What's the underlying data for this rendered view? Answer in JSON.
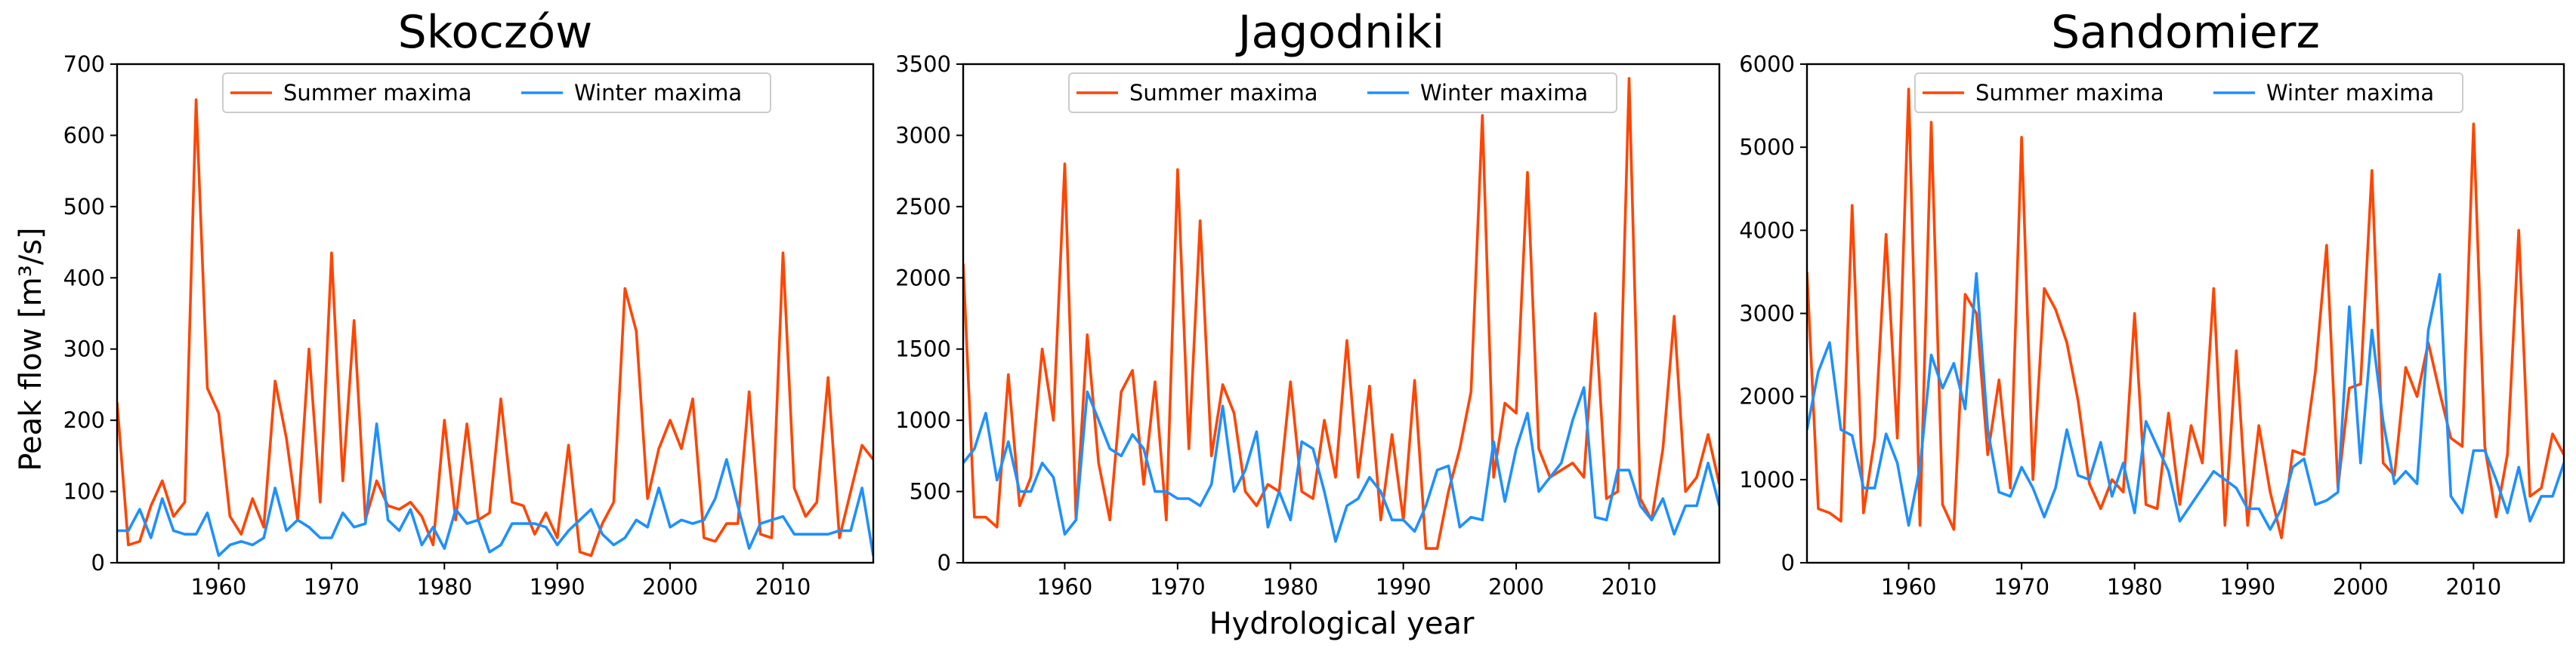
{
  "colors": {
    "summer": "#ff4500",
    "winter": "#1e90ff"
  },
  "shared": {
    "ylabel": "Peak flow [m³/s]",
    "xlabel": "Hydrological year",
    "legend": {
      "summer": "Summer maxima",
      "winter": "Winter maxima"
    }
  },
  "chart_data": [
    {
      "type": "line",
      "title": "Skoczów",
      "xlabel": "Hydrological year",
      "ylabel": "Peak flow [m³/s]",
      "xlim": [
        1951,
        2018
      ],
      "ylim": [
        0,
        700
      ],
      "xticks": [
        1960,
        1970,
        1980,
        1990,
        2000,
        2010
      ],
      "yticks": [
        0,
        100,
        200,
        300,
        400,
        500,
        600,
        700
      ],
      "x": [
        1951,
        1952,
        1953,
        1954,
        1955,
        1956,
        1957,
        1958,
        1959,
        1960,
        1961,
        1962,
        1963,
        1964,
        1965,
        1966,
        1967,
        1968,
        1969,
        1970,
        1971,
        1972,
        1973,
        1974,
        1975,
        1976,
        1977,
        1978,
        1979,
        1980,
        1981,
        1982,
        1983,
        1984,
        1985,
        1986,
        1987,
        1988,
        1989,
        1990,
        1991,
        1992,
        1993,
        1994,
        1995,
        1996,
        1997,
        1998,
        1999,
        2000,
        2001,
        2002,
        2003,
        2004,
        2005,
        2006,
        2007,
        2008,
        2009,
        2010,
        2011,
        2012,
        2013,
        2014,
        2015,
        2016,
        2017,
        2018
      ],
      "series": [
        {
          "name": "Summer maxima",
          "values": [
            225,
            25,
            30,
            80,
            115,
            65,
            85,
            650,
            245,
            210,
            65,
            40,
            90,
            50,
            255,
            175,
            60,
            300,
            85,
            435,
            115,
            340,
            60,
            115,
            80,
            75,
            85,
            65,
            25,
            200,
            60,
            195,
            60,
            70,
            230,
            85,
            80,
            40,
            70,
            35,
            165,
            15,
            10,
            55,
            85,
            385,
            325,
            90,
            160,
            200,
            160,
            230,
            35,
            30,
            55,
            55,
            240,
            40,
            35,
            435,
            105,
            65,
            85,
            260,
            35,
            100,
            165,
            145
          ]
        },
        {
          "name": "Winter maxima",
          "values": [
            45,
            45,
            75,
            35,
            90,
            45,
            40,
            40,
            70,
            10,
            25,
            30,
            25,
            35,
            105,
            45,
            60,
            50,
            35,
            35,
            70,
            50,
            55,
            195,
            60,
            45,
            75,
            25,
            50,
            20,
            75,
            55,
            60,
            15,
            25,
            55,
            55,
            55,
            50,
            25,
            45,
            60,
            75,
            40,
            25,
            35,
            60,
            50,
            105,
            50,
            60,
            55,
            60,
            90,
            145,
            80,
            20,
            55,
            60,
            65,
            40,
            40,
            40,
            40,
            45,
            45,
            105,
            10
          ]
        }
      ]
    },
    {
      "type": "line",
      "title": "Jagodniki",
      "xlabel": "Hydrological year",
      "ylabel": "Peak flow [m³/s]",
      "xlim": [
        1951,
        2018
      ],
      "ylim": [
        0,
        3500
      ],
      "xticks": [
        1960,
        1970,
        1980,
        1990,
        2000,
        2010
      ],
      "yticks": [
        0,
        500,
        1000,
        1500,
        2000,
        2500,
        3000,
        3500
      ],
      "x": [
        1951,
        1952,
        1953,
        1954,
        1955,
        1956,
        1957,
        1958,
        1959,
        1960,
        1961,
        1962,
        1963,
        1964,
        1965,
        1966,
        1967,
        1968,
        1969,
        1970,
        1971,
        1972,
        1973,
        1974,
        1975,
        1976,
        1977,
        1978,
        1979,
        1980,
        1981,
        1982,
        1983,
        1984,
        1985,
        1986,
        1987,
        1988,
        1989,
        1990,
        1991,
        1992,
        1993,
        1994,
        1995,
        1996,
        1997,
        1998,
        1999,
        2000,
        2001,
        2002,
        2003,
        2004,
        2005,
        2006,
        2007,
        2008,
        2009,
        2010,
        2011,
        2012,
        2013,
        2014,
        2015,
        2016,
        2017,
        2018
      ],
      "series": [
        {
          "name": "Summer maxima",
          "values": [
            2100,
            320,
            320,
            250,
            1320,
            400,
            600,
            1500,
            1000,
            2800,
            300,
            1600,
            700,
            300,
            1200,
            1350,
            550,
            1270,
            300,
            2760,
            800,
            2400,
            750,
            1250,
            1050,
            500,
            400,
            550,
            500,
            1270,
            500,
            450,
            1000,
            600,
            1560,
            600,
            1240,
            300,
            900,
            300,
            1280,
            100,
            100,
            500,
            800,
            1200,
            3140,
            600,
            1120,
            1050,
            2740,
            800,
            600,
            650,
            700,
            600,
            1750,
            450,
            500,
            3400,
            450,
            300,
            800,
            1730,
            500,
            600,
            900,
            550
          ]
        },
        {
          "name": "Winter maxima",
          "values": [
            700,
            800,
            1050,
            580,
            850,
            500,
            500,
            700,
            600,
            200,
            300,
            1200,
            1000,
            800,
            750,
            900,
            800,
            500,
            500,
            450,
            450,
            400,
            550,
            1100,
            500,
            650,
            920,
            250,
            500,
            300,
            850,
            800,
            500,
            150,
            400,
            450,
            600,
            500,
            300,
            300,
            220,
            400,
            650,
            680,
            250,
            320,
            300,
            850,
            430,
            800,
            1050,
            500,
            600,
            700,
            1000,
            1230,
            320,
            300,
            650,
            650,
            400,
            300,
            450,
            200,
            400,
            400,
            700,
            400
          ]
        }
      ]
    },
    {
      "type": "line",
      "title": "Sandomierz",
      "xlabel": "Hydrological year",
      "ylabel": "Peak flow [m³/s]",
      "xlim": [
        1951,
        2018
      ],
      "ylim": [
        0,
        6000
      ],
      "xticks": [
        1960,
        1970,
        1980,
        1990,
        2000,
        2010
      ],
      "yticks": [
        0,
        1000,
        2000,
        3000,
        4000,
        5000,
        6000
      ],
      "x": [
        1951,
        1952,
        1953,
        1954,
        1955,
        1956,
        1957,
        1958,
        1959,
        1960,
        1961,
        1962,
        1963,
        1964,
        1965,
        1966,
        1967,
        1968,
        1969,
        1970,
        1971,
        1972,
        1973,
        1974,
        1975,
        1976,
        1977,
        1978,
        1979,
        1980,
        1981,
        1982,
        1983,
        1984,
        1985,
        1986,
        1987,
        1988,
        1989,
        1990,
        1991,
        1992,
        1993,
        1994,
        1995,
        1996,
        1997,
        1998,
        1999,
        2000,
        2001,
        2002,
        2003,
        2004,
        2005,
        2006,
        2007,
        2008,
        2009,
        2010,
        2011,
        2012,
        2013,
        2014,
        2015,
        2016,
        2017,
        2018
      ],
      "series": [
        {
          "name": "Summer maxima",
          "values": [
            3500,
            650,
            600,
            500,
            4300,
            600,
            1500,
            3950,
            1500,
            5700,
            450,
            5300,
            700,
            400,
            3230,
            3000,
            1300,
            2200,
            900,
            5120,
            1000,
            3300,
            3050,
            2650,
            1950,
            950,
            650,
            1000,
            850,
            3000,
            700,
            650,
            1800,
            700,
            1650,
            1200,
            3300,
            450,
            2550,
            450,
            1650,
            850,
            300,
            1350,
            1300,
            2300,
            3820,
            900,
            2100,
            2150,
            4720,
            1200,
            1050,
            2350,
            2000,
            2650,
            2050,
            1500,
            1400,
            5280,
            1400,
            550,
            1300,
            4000,
            800,
            900,
            1550,
            1300
          ]
        },
        {
          "name": "Winter maxima",
          "values": [
            1600,
            2300,
            2650,
            1600,
            1530,
            900,
            900,
            1550,
            1200,
            450,
            1150,
            2500,
            2100,
            2400,
            1850,
            3480,
            1600,
            850,
            800,
            1150,
            900,
            550,
            900,
            1600,
            1050,
            1000,
            1450,
            800,
            1200,
            600,
            1700,
            1400,
            1100,
            500,
            700,
            900,
            1100,
            1000,
            900,
            650,
            650,
            400,
            650,
            1150,
            1250,
            700,
            750,
            850,
            3080,
            1200,
            2800,
            1700,
            950,
            1100,
            950,
            2800,
            3470,
            800,
            600,
            1350,
            1350,
            1000,
            600,
            1150,
            500,
            800,
            800,
            1200
          ]
        }
      ]
    }
  ]
}
